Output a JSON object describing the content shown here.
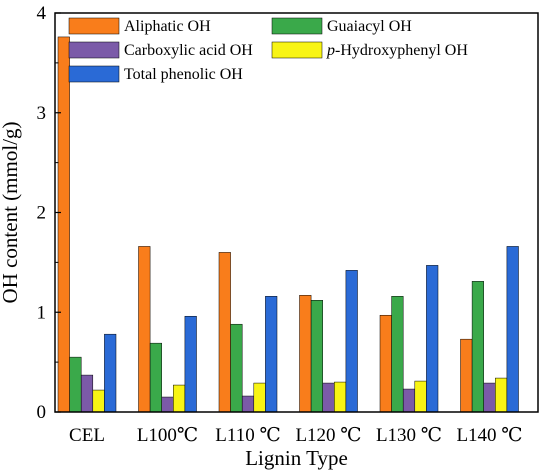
{
  "chart_data": {
    "type": "bar",
    "xlabel": "Lignin Type",
    "ylabel": "OH content (mmol/g)",
    "ylim": [
      0,
      4
    ],
    "yticks": [
      0,
      1,
      2,
      3,
      4
    ],
    "grid": false,
    "legend_position": "top",
    "categories": [
      "CEL",
      "L100℃",
      "L110 ℃",
      "L120 ℃",
      "L130 ℃",
      "L140 ℃"
    ],
    "series": [
      {
        "name": "Aliphatic OH",
        "color": "#f97d1b",
        "values": [
          3.76,
          1.66,
          1.6,
          1.17,
          0.97,
          0.73
        ]
      },
      {
        "name": "Guaiacyl OH",
        "color": "#3aa94a",
        "values": [
          0.55,
          0.69,
          0.88,
          1.12,
          1.16,
          1.31
        ]
      },
      {
        "name": "Carboxylic acid OH",
        "color": "#7b5aa8",
        "values": [
          0.37,
          0.15,
          0.16,
          0.29,
          0.23,
          0.29
        ]
      },
      {
        "name": "p-Hydroxyphenyl OH",
        "color": "#f8f414",
        "values": [
          0.22,
          0.27,
          0.29,
          0.3,
          0.31,
          0.34
        ]
      },
      {
        "name": "Total phenolic  OH",
        "color": "#2a6ad6",
        "values": [
          0.78,
          0.96,
          1.16,
          1.42,
          1.47,
          1.66
        ]
      }
    ]
  }
}
